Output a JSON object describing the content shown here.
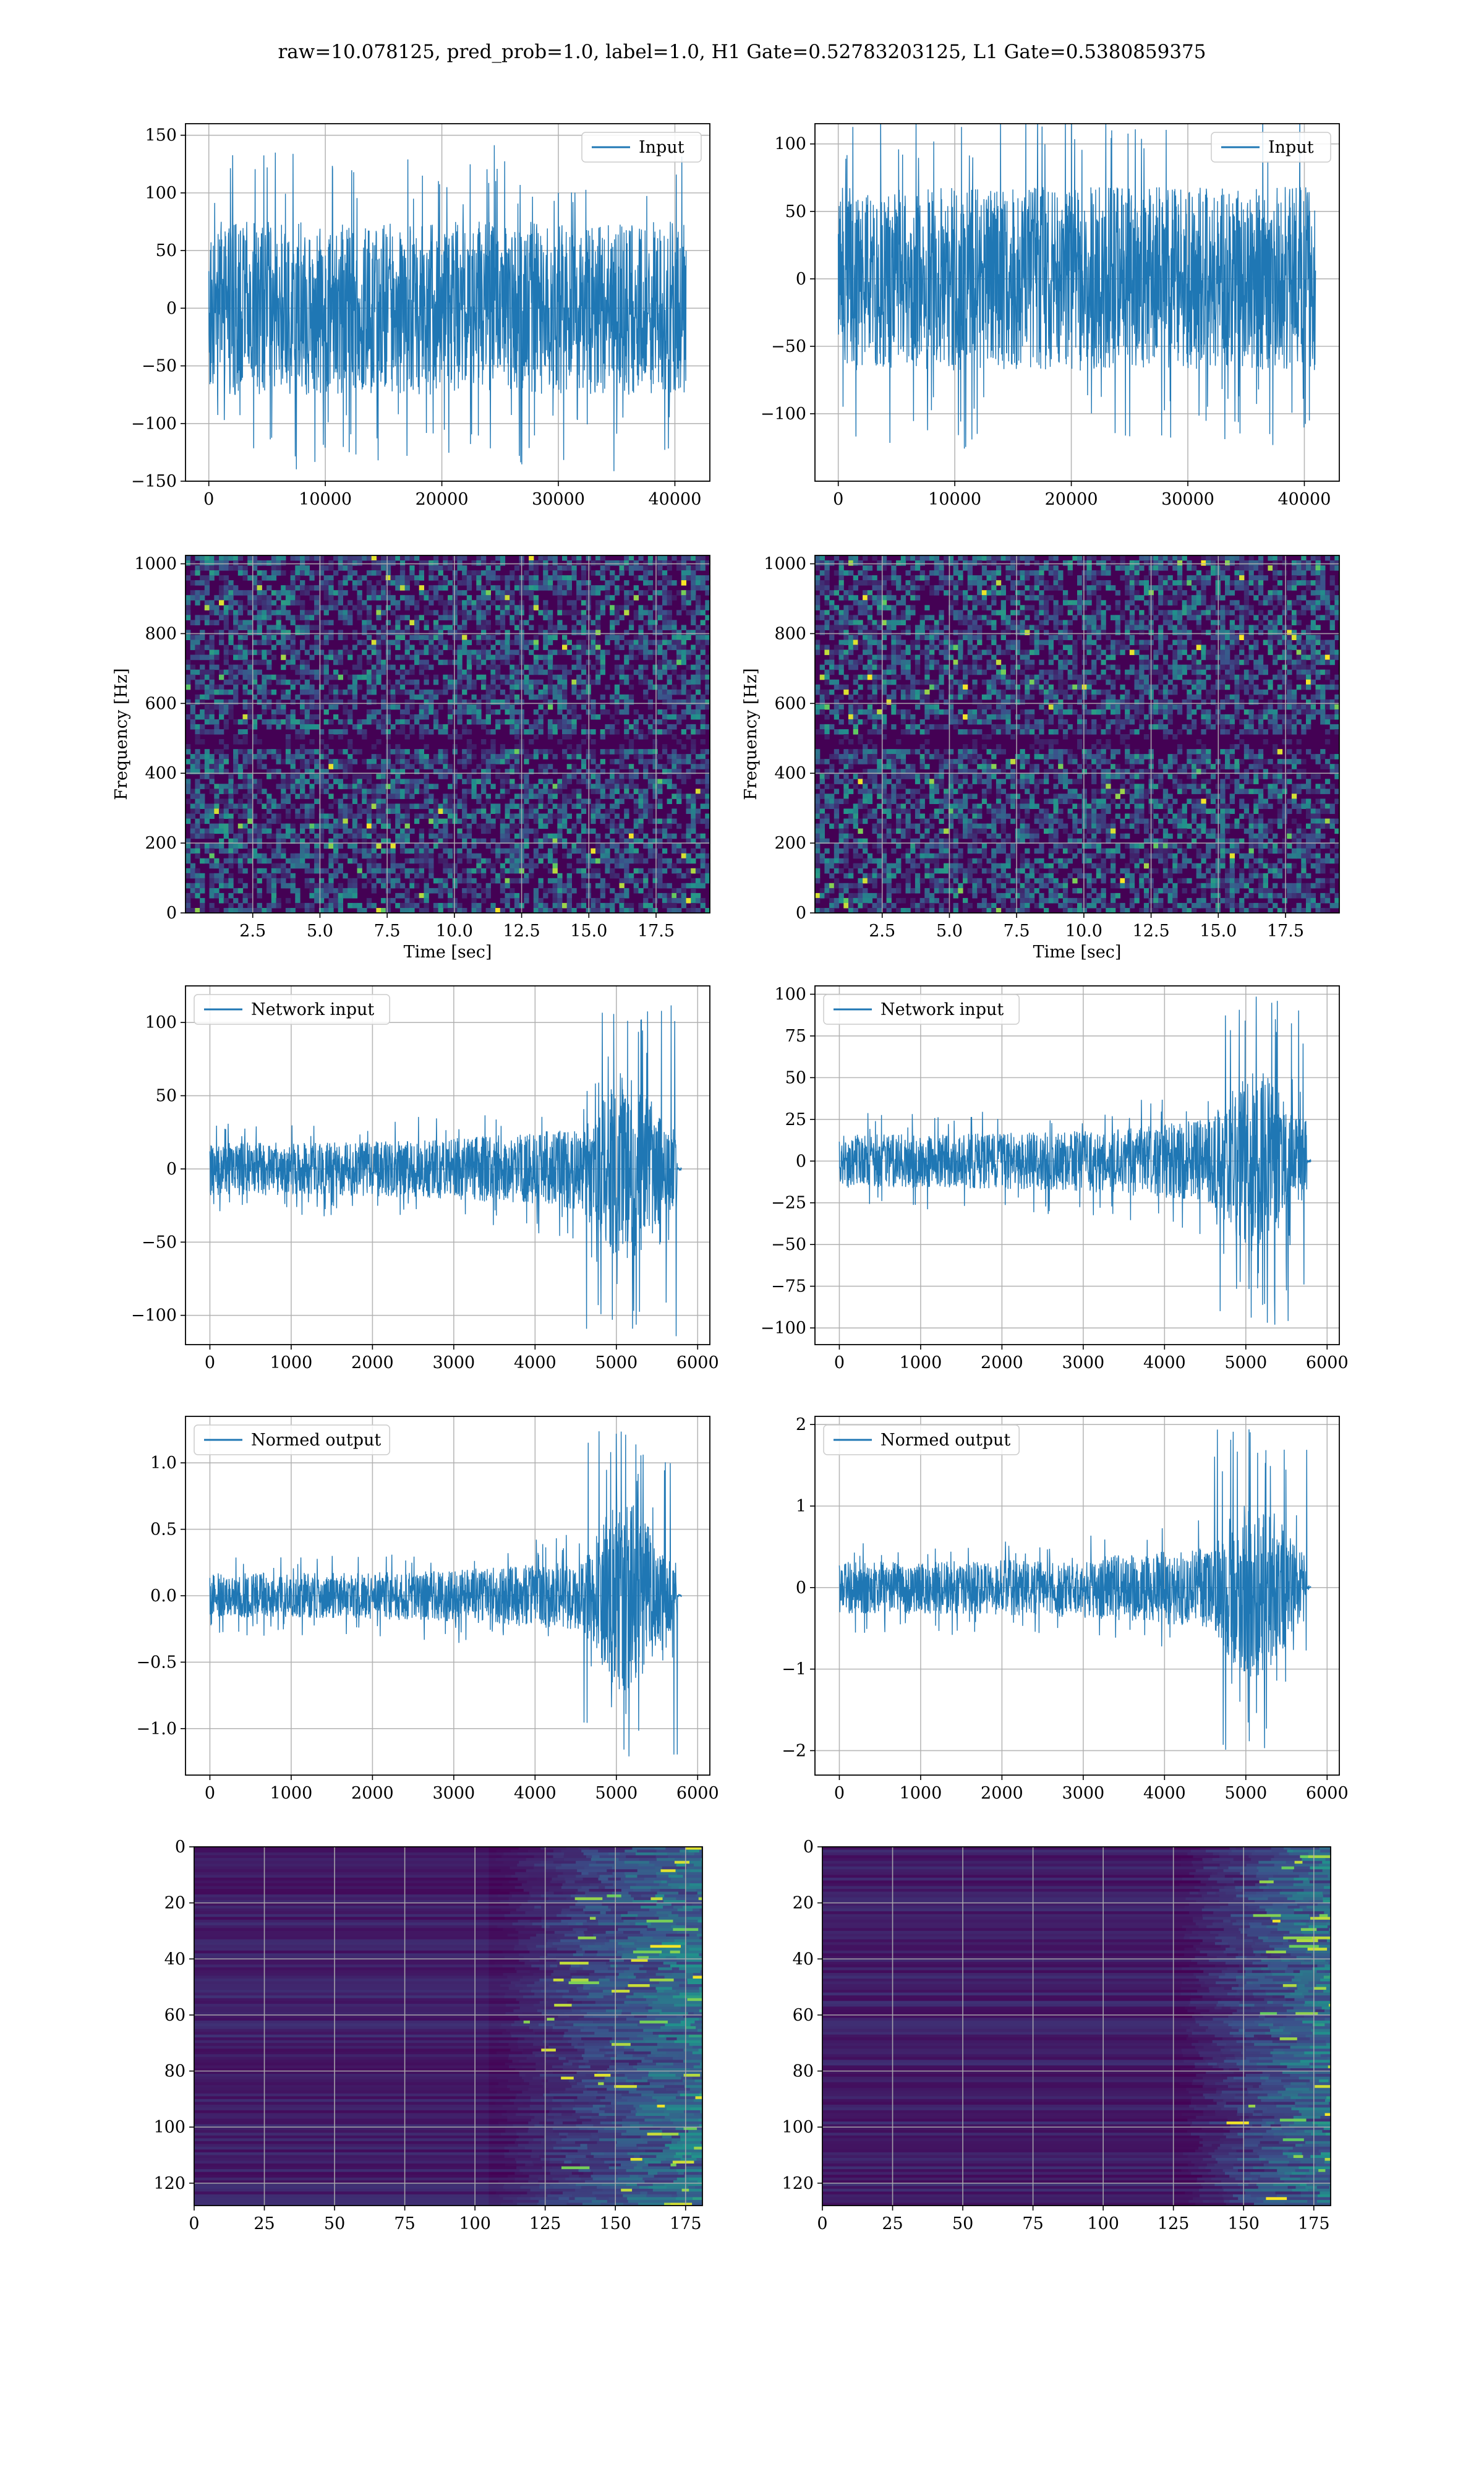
{
  "figure": {
    "suptitle": "raw=10.078125, pred_prob=1.0, label=1.0, H1 Gate=0.52783203125, L1 Gate=0.5380859375"
  },
  "colors": {
    "line": "#1f77b4",
    "grid": "#b0b0b0",
    "viridis_low": "#440154",
    "viridis_mid": "#21918c",
    "viridis_high": "#fde725"
  },
  "chart_data": [
    {
      "id": "h1-input",
      "type": "line",
      "legend": "Input",
      "legend_loc": "upper right",
      "xlim": [
        -2000,
        43000
      ],
      "ylim": [
        -150,
        160
      ],
      "xticks": [
        0,
        10000,
        20000,
        30000,
        40000
      ],
      "yticks": [
        -150,
        -100,
        -50,
        0,
        50,
        100,
        150
      ],
      "xticklabels": [
        "0",
        "10000",
        "20000",
        "30000",
        "40000"
      ],
      "yticklabels": [
        "−150",
        "−100",
        "−50",
        "0",
        "50",
        "100",
        "150"
      ],
      "signal": {
        "x_range": [
          0,
          40960
        ],
        "body_amp": 75,
        "peak_amp": 145,
        "envelope": "flat"
      },
      "xlabel": "",
      "ylabel": "",
      "grid": true
    },
    {
      "id": "l1-input",
      "type": "line",
      "legend": "Input",
      "legend_loc": "upper right",
      "xlim": [
        -2000,
        43000
      ],
      "ylim": [
        -150,
        115
      ],
      "xticks": [
        0,
        10000,
        20000,
        30000,
        40000
      ],
      "yticks": [
        -100,
        -50,
        0,
        50,
        100
      ],
      "xticklabels": [
        "0",
        "10000",
        "20000",
        "30000",
        "40000"
      ],
      "yticklabels": [
        "−100",
        "−50",
        "0",
        "50",
        "100"
      ],
      "signal": {
        "x_range": [
          0,
          40960
        ],
        "body_amp": 68,
        "peak_amp": 130,
        "envelope": "flat"
      },
      "xlabel": "",
      "ylabel": "",
      "grid": true
    },
    {
      "id": "h1-spectrogram",
      "type": "heatmap",
      "colormap": "viridis",
      "xlim": [
        0,
        19.5
      ],
      "ylim": [
        0,
        1024
      ],
      "xticks": [
        2.5,
        5.0,
        7.5,
        10.0,
        12.5,
        15.0,
        17.5
      ],
      "yticks": [
        0,
        200,
        400,
        600,
        800,
        1000
      ],
      "xticklabels": [
        "2.5",
        "5.0",
        "7.5",
        "10.0",
        "12.5",
        "15.0",
        "17.5"
      ],
      "yticklabels": [
        "0",
        "200",
        "400",
        "600",
        "800",
        "1000"
      ],
      "xlabel": "Time [sec]",
      "ylabel": "Frequency [Hz]",
      "grid": true,
      "dark_band_hz": [
        470,
        510
      ]
    },
    {
      "id": "l1-spectrogram",
      "type": "heatmap",
      "colormap": "viridis",
      "xlim": [
        0,
        19.5
      ],
      "ylim": [
        0,
        1024
      ],
      "xticks": [
        2.5,
        5.0,
        7.5,
        10.0,
        12.5,
        15.0,
        17.5
      ],
      "yticks": [
        0,
        200,
        400,
        600,
        800,
        1000
      ],
      "xticklabels": [
        "2.5",
        "5.0",
        "7.5",
        "10.0",
        "12.5",
        "15.0",
        "17.5"
      ],
      "yticklabels": [
        "0",
        "200",
        "400",
        "600",
        "800",
        "1000"
      ],
      "xlabel": "Time [sec]",
      "ylabel": "Frequency [Hz]",
      "grid": true,
      "dark_band_hz": [
        470,
        510
      ]
    },
    {
      "id": "h1-network-input",
      "type": "line",
      "legend": "Network input",
      "legend_loc": "upper left",
      "xlim": [
        -300,
        6150
      ],
      "ylim": [
        -120,
        125
      ],
      "xticks": [
        0,
        1000,
        2000,
        3000,
        4000,
        5000,
        6000
      ],
      "yticks": [
        -100,
        -50,
        0,
        50,
        100
      ],
      "xticklabels": [
        "0",
        "1000",
        "2000",
        "3000",
        "4000",
        "5000",
        "6000"
      ],
      "yticklabels": [
        "−100",
        "−50",
        "0",
        "50",
        "100"
      ],
      "signal": {
        "x_range": [
          0,
          5800
        ],
        "body_amp": 18,
        "peak_amp": 120,
        "envelope": "chirp",
        "chirp_start": 4600,
        "chirp_end": 5750
      },
      "xlabel": "",
      "ylabel": "",
      "grid": true
    },
    {
      "id": "l1-network-input",
      "type": "line",
      "legend": "Network input",
      "legend_loc": "upper left",
      "xlim": [
        -300,
        6150
      ],
      "ylim": [
        -110,
        105
      ],
      "xticks": [
        0,
        1000,
        2000,
        3000,
        4000,
        5000,
        6000
      ],
      "yticks": [
        -100,
        -75,
        -50,
        -25,
        0,
        25,
        50,
        75,
        100
      ],
      "xticklabels": [
        "0",
        "1000",
        "2000",
        "3000",
        "4000",
        "5000",
        "6000"
      ],
      "yticklabels": [
        "−100",
        "−75",
        "−50",
        "−25",
        "0",
        "25",
        "50",
        "75",
        "100"
      ],
      "signal": {
        "x_range": [
          0,
          5800
        ],
        "body_amp": 16,
        "peak_amp": 100,
        "envelope": "chirp",
        "chirp_start": 4600,
        "chirp_end": 5750
      },
      "xlabel": "",
      "ylabel": "",
      "grid": true
    },
    {
      "id": "h1-normed-output",
      "type": "line",
      "legend": "Normed output",
      "legend_loc": "upper left",
      "xlim": [
        -300,
        6150
      ],
      "ylim": [
        -1.35,
        1.35
      ],
      "xticks": [
        0,
        1000,
        2000,
        3000,
        4000,
        5000,
        6000
      ],
      "yticks": [
        -1.0,
        -0.5,
        0.0,
        0.5,
        1.0
      ],
      "xticklabels": [
        "0",
        "1000",
        "2000",
        "3000",
        "4000",
        "5000",
        "6000"
      ],
      "yticklabels": [
        "−1.0",
        "−0.5",
        "0.0",
        "0.5",
        "1.0"
      ],
      "signal": {
        "x_range": [
          0,
          5800
        ],
        "body_amp": 0.17,
        "peak_amp": 1.3,
        "envelope": "chirp",
        "chirp_start": 4600,
        "chirp_end": 5750
      },
      "xlabel": "",
      "ylabel": "",
      "grid": true
    },
    {
      "id": "l1-normed-output",
      "type": "line",
      "legend": "Normed output",
      "legend_loc": "upper left",
      "xlim": [
        -300,
        6150
      ],
      "ylim": [
        -2.3,
        2.1
      ],
      "xticks": [
        0,
        1000,
        2000,
        3000,
        4000,
        5000,
        6000
      ],
      "yticks": [
        -2,
        -1,
        0,
        1,
        2
      ],
      "xticklabels": [
        "0",
        "1000",
        "2000",
        "3000",
        "4000",
        "5000",
        "6000"
      ],
      "yticklabels": [
        "−2",
        "−1",
        "0",
        "1",
        "2"
      ],
      "signal": {
        "x_range": [
          0,
          5800
        ],
        "body_amp": 0.32,
        "peak_amp": 2.0,
        "envelope": "chirp",
        "chirp_start": 4600,
        "chirp_end": 5750
      },
      "xlabel": "",
      "ylabel": "",
      "grid": true
    },
    {
      "id": "h1-feature-map",
      "type": "heatmap",
      "colormap": "viridis",
      "xlim": [
        0,
        181
      ],
      "ylim": [
        128,
        0
      ],
      "xticks": [
        0,
        25,
        50,
        75,
        100,
        125,
        150,
        175
      ],
      "yticks": [
        0,
        20,
        40,
        60,
        80,
        100,
        120
      ],
      "xticklabels": [
        "0",
        "25",
        "50",
        "75",
        "100",
        "125",
        "150",
        "175"
      ],
      "yticklabels": [
        "0",
        "20",
        "40",
        "60",
        "80",
        "100",
        "120"
      ],
      "xlabel": "",
      "ylabel": "",
      "grid": true,
      "activation_onset": 105
    },
    {
      "id": "l1-feature-map",
      "type": "heatmap",
      "colormap": "viridis",
      "xlim": [
        0,
        181
      ],
      "ylim": [
        128,
        0
      ],
      "xticks": [
        0,
        25,
        50,
        75,
        100,
        125,
        150,
        175
      ],
      "yticks": [
        0,
        20,
        40,
        60,
        80,
        100,
        120
      ],
      "xticklabels": [
        "0",
        "25",
        "50",
        "75",
        "100",
        "125",
        "150",
        "175"
      ],
      "yticklabels": [
        "0",
        "20",
        "40",
        "60",
        "80",
        "100",
        "120"
      ],
      "xlabel": "",
      "ylabel": "",
      "grid": true,
      "activation_onset": 125
    }
  ]
}
